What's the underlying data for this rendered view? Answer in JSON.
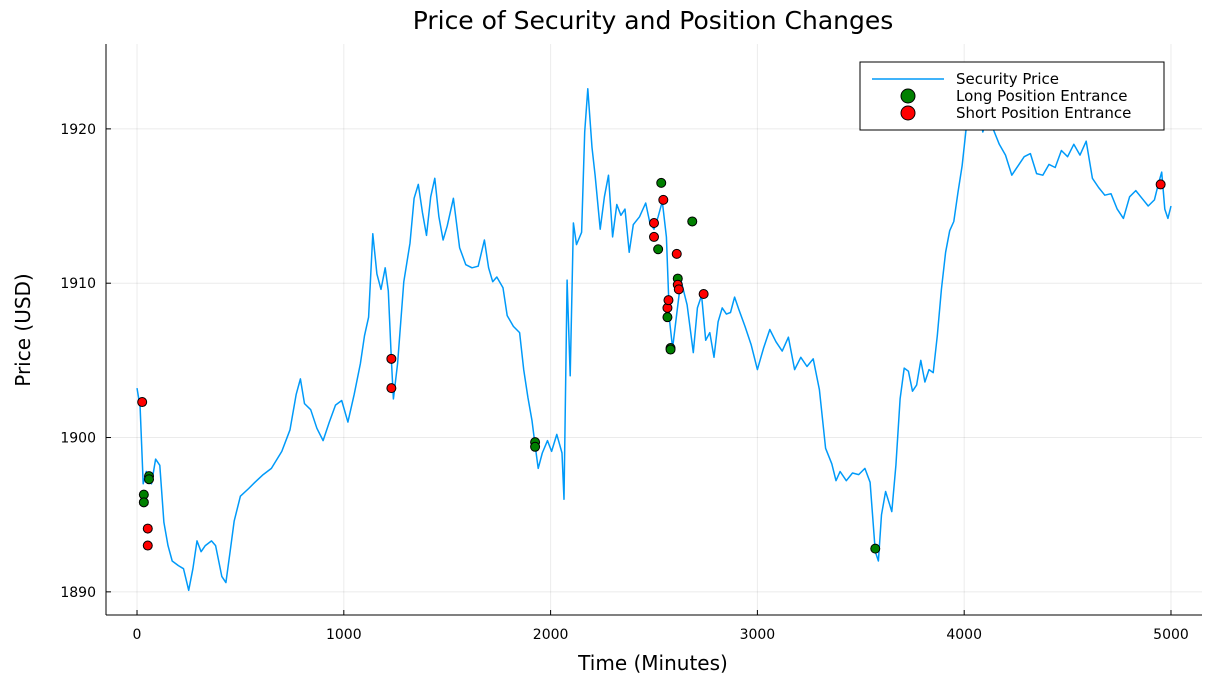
{
  "chart_data": {
    "type": "line",
    "title": "Price of Security and Position Changes",
    "xlabel": "Time (Minutes)",
    "ylabel": "Price (USD)",
    "xlim": [
      -150,
      5150
    ],
    "ylim": [
      1888.5,
      1925.5
    ],
    "xticks": [
      0,
      1000,
      2000,
      3000,
      4000,
      5000
    ],
    "yticks": [
      1890,
      1900,
      1910,
      1920
    ],
    "grid": true,
    "legend_position": "top-right",
    "series": [
      {
        "name": "Security Price",
        "kind": "line",
        "color": "#009af9",
        "points": [
          [
            0,
            1903.2
          ],
          [
            15,
            1902.0
          ],
          [
            30,
            1897.0
          ],
          [
            45,
            1897.8
          ],
          [
            55,
            1897.3
          ],
          [
            70,
            1897.0
          ],
          [
            90,
            1898.6
          ],
          [
            110,
            1898.2
          ],
          [
            130,
            1894.5
          ],
          [
            150,
            1893.0
          ],
          [
            170,
            1892.0
          ],
          [
            200,
            1891.7
          ],
          [
            225,
            1891.5
          ],
          [
            250,
            1890.1
          ],
          [
            270,
            1891.5
          ],
          [
            290,
            1893.3
          ],
          [
            310,
            1892.6
          ],
          [
            330,
            1893.0
          ],
          [
            360,
            1893.3
          ],
          [
            380,
            1893.0
          ],
          [
            410,
            1891.0
          ],
          [
            430,
            1890.6
          ],
          [
            450,
            1892.6
          ],
          [
            470,
            1894.6
          ],
          [
            500,
            1896.2
          ],
          [
            540,
            1896.7
          ],
          [
            570,
            1897.1
          ],
          [
            610,
            1897.6
          ],
          [
            650,
            1898.0
          ],
          [
            700,
            1899.1
          ],
          [
            740,
            1900.5
          ],
          [
            770,
            1902.8
          ],
          [
            790,
            1903.8
          ],
          [
            810,
            1902.2
          ],
          [
            840,
            1901.8
          ],
          [
            870,
            1900.6
          ],
          [
            900,
            1899.8
          ],
          [
            930,
            1901.0
          ],
          [
            960,
            1902.1
          ],
          [
            990,
            1902.4
          ],
          [
            1020,
            1901.0
          ],
          [
            1050,
            1902.8
          ],
          [
            1080,
            1904.8
          ],
          [
            1100,
            1906.6
          ],
          [
            1120,
            1907.8
          ],
          [
            1140,
            1913.2
          ],
          [
            1160,
            1910.6
          ],
          [
            1180,
            1909.6
          ],
          [
            1200,
            1911.0
          ],
          [
            1215,
            1909.5
          ],
          [
            1230,
            1905.0
          ],
          [
            1240,
            1902.5
          ],
          [
            1260,
            1904.8
          ],
          [
            1290,
            1910.1
          ],
          [
            1320,
            1912.6
          ],
          [
            1340,
            1915.5
          ],
          [
            1360,
            1916.4
          ],
          [
            1380,
            1914.6
          ],
          [
            1400,
            1913.1
          ],
          [
            1420,
            1915.6
          ],
          [
            1440,
            1916.8
          ],
          [
            1460,
            1914.3
          ],
          [
            1480,
            1912.8
          ],
          [
            1500,
            1913.7
          ],
          [
            1530,
            1915.5
          ],
          [
            1560,
            1912.3
          ],
          [
            1590,
            1911.2
          ],
          [
            1620,
            1911.0
          ],
          [
            1650,
            1911.1
          ],
          [
            1680,
            1912.8
          ],
          [
            1700,
            1911.0
          ],
          [
            1720,
            1910.1
          ],
          [
            1740,
            1910.4
          ],
          [
            1770,
            1909.7
          ],
          [
            1790,
            1907.9
          ],
          [
            1820,
            1907.2
          ],
          [
            1850,
            1906.8
          ],
          [
            1870,
            1904.4
          ],
          [
            1890,
            1902.6
          ],
          [
            1910,
            1901.1
          ],
          [
            1925,
            1899.5
          ],
          [
            1940,
            1898.0
          ],
          [
            1960,
            1899.0
          ],
          [
            1985,
            1899.8
          ],
          [
            2005,
            1899.1
          ],
          [
            2030,
            1900.2
          ],
          [
            2055,
            1899.0
          ],
          [
            2065,
            1896.0
          ],
          [
            2080,
            1910.2
          ],
          [
            2095,
            1904.0
          ],
          [
            2110,
            1913.9
          ],
          [
            2125,
            1912.5
          ],
          [
            2150,
            1913.3
          ],
          [
            2165,
            1919.8
          ],
          [
            2180,
            1922.6
          ],
          [
            2200,
            1918.8
          ],
          [
            2215,
            1917.0
          ],
          [
            2240,
            1913.5
          ],
          [
            2260,
            1915.6
          ],
          [
            2280,
            1917.0
          ],
          [
            2300,
            1913.0
          ],
          [
            2320,
            1915.1
          ],
          [
            2340,
            1914.4
          ],
          [
            2360,
            1914.8
          ],
          [
            2380,
            1912.0
          ],
          [
            2400,
            1913.8
          ],
          [
            2430,
            1914.3
          ],
          [
            2460,
            1915.2
          ],
          [
            2480,
            1913.9
          ],
          [
            2500,
            1913.5
          ],
          [
            2520,
            1914.3
          ],
          [
            2540,
            1915.3
          ],
          [
            2560,
            1913.0
          ],
          [
            2575,
            1907.6
          ],
          [
            2590,
            1905.8
          ],
          [
            2610,
            1908.0
          ],
          [
            2630,
            1910.2
          ],
          [
            2660,
            1908.6
          ],
          [
            2690,
            1905.5
          ],
          [
            2710,
            1908.4
          ],
          [
            2730,
            1909.2
          ],
          [
            2750,
            1906.3
          ],
          [
            2770,
            1906.8
          ],
          [
            2790,
            1905.2
          ],
          [
            2810,
            1907.5
          ],
          [
            2830,
            1908.4
          ],
          [
            2850,
            1908.0
          ],
          [
            2870,
            1908.1
          ],
          [
            2890,
            1909.1
          ],
          [
            2910,
            1908.3
          ],
          [
            2940,
            1907.2
          ],
          [
            2970,
            1906.0
          ],
          [
            3000,
            1904.4
          ],
          [
            3030,
            1905.8
          ],
          [
            3060,
            1907.0
          ],
          [
            3090,
            1906.2
          ],
          [
            3120,
            1905.6
          ],
          [
            3150,
            1906.5
          ],
          [
            3180,
            1904.4
          ],
          [
            3210,
            1905.2
          ],
          [
            3240,
            1904.6
          ],
          [
            3270,
            1905.1
          ],
          [
            3300,
            1903.1
          ],
          [
            3330,
            1899.3
          ],
          [
            3360,
            1898.3
          ],
          [
            3380,
            1897.2
          ],
          [
            3400,
            1897.8
          ],
          [
            3430,
            1897.2
          ],
          [
            3460,
            1897.7
          ],
          [
            3490,
            1897.6
          ],
          [
            3520,
            1898.0
          ],
          [
            3545,
            1897.1
          ],
          [
            3570,
            1892.6
          ],
          [
            3585,
            1892.0
          ],
          [
            3600,
            1895.0
          ],
          [
            3620,
            1896.5
          ],
          [
            3650,
            1895.2
          ],
          [
            3670,
            1898.2
          ],
          [
            3690,
            1902.5
          ],
          [
            3710,
            1904.5
          ],
          [
            3730,
            1904.3
          ],
          [
            3750,
            1903.0
          ],
          [
            3770,
            1903.4
          ],
          [
            3790,
            1905.0
          ],
          [
            3810,
            1903.6
          ],
          [
            3830,
            1904.4
          ],
          [
            3850,
            1904.2
          ],
          [
            3870,
            1906.6
          ],
          [
            3890,
            1909.6
          ],
          [
            3910,
            1912.0
          ],
          [
            3930,
            1913.4
          ],
          [
            3950,
            1914.0
          ],
          [
            3970,
            1915.9
          ],
          [
            3990,
            1917.6
          ],
          [
            4010,
            1920.1
          ],
          [
            4030,
            1922.7
          ],
          [
            4050,
            1921.8
          ],
          [
            4070,
            1921.6
          ],
          [
            4090,
            1919.8
          ],
          [
            4110,
            1920.6
          ],
          [
            4140,
            1920.0
          ],
          [
            4170,
            1919.0
          ],
          [
            4200,
            1918.3
          ],
          [
            4230,
            1917.0
          ],
          [
            4260,
            1917.6
          ],
          [
            4290,
            1918.2
          ],
          [
            4320,
            1918.4
          ],
          [
            4350,
            1917.1
          ],
          [
            4380,
            1917.0
          ],
          [
            4410,
            1917.7
          ],
          [
            4440,
            1917.5
          ],
          [
            4470,
            1918.6
          ],
          [
            4500,
            1918.2
          ],
          [
            4530,
            1919.0
          ],
          [
            4560,
            1918.3
          ],
          [
            4590,
            1919.2
          ],
          [
            4620,
            1916.8
          ],
          [
            4650,
            1916.2
          ],
          [
            4680,
            1915.7
          ],
          [
            4710,
            1915.8
          ],
          [
            4740,
            1914.8
          ],
          [
            4770,
            1914.2
          ],
          [
            4800,
            1915.6
          ],
          [
            4830,
            1916.0
          ],
          [
            4860,
            1915.5
          ],
          [
            4890,
            1915.0
          ],
          [
            4920,
            1915.4
          ],
          [
            4940,
            1916.5
          ],
          [
            4955,
            1917.2
          ],
          [
            4970,
            1914.8
          ],
          [
            4985,
            1914.2
          ],
          [
            5000,
            1915.0
          ]
        ]
      },
      {
        "name": "Long Position Entrance",
        "kind": "scatter",
        "color": "#008000",
        "points": [
          [
            33,
            1896.3
          ],
          [
            33,
            1895.8
          ],
          [
            58,
            1897.5
          ],
          [
            58,
            1897.3
          ],
          [
            1925,
            1899.7
          ],
          [
            1925,
            1899.4
          ],
          [
            2535,
            1916.5
          ],
          [
            2520,
            1912.2
          ],
          [
            2565,
            1907.8
          ],
          [
            2580,
            1905.8
          ],
          [
            2580,
            1905.7
          ],
          [
            2615,
            1910.3
          ],
          [
            2685,
            1914.0
          ],
          [
            3570,
            1892.8
          ]
        ]
      },
      {
        "name": "Short Position Entrance",
        "kind": "scatter",
        "color": "#ff0000",
        "points": [
          [
            25,
            1902.3
          ],
          [
            52,
            1894.1
          ],
          [
            52,
            1893.0
          ],
          [
            1230,
            1905.1
          ],
          [
            1230,
            1903.2
          ],
          [
            2500,
            1913.9
          ],
          [
            2500,
            1913.0
          ],
          [
            2545,
            1915.4
          ],
          [
            2565,
            1908.4
          ],
          [
            2570,
            1908.9
          ],
          [
            2610,
            1911.9
          ],
          [
            2615,
            1909.9
          ],
          [
            2620,
            1909.6
          ],
          [
            2740,
            1909.3
          ],
          [
            4950,
            1916.4
          ]
        ]
      }
    ],
    "legend": [
      {
        "label": "Security Price",
        "kind": "line",
        "color": "#009af9"
      },
      {
        "label": "Long Position Entrance",
        "kind": "marker",
        "color": "#008000"
      },
      {
        "label": "Short Position Entrance",
        "kind": "marker",
        "color": "#ff0000"
      }
    ]
  }
}
